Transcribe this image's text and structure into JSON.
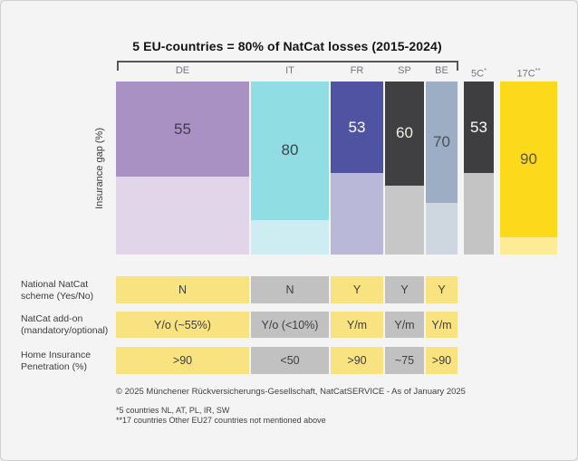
{
  "chart_data": {
    "type": "bar",
    "variant": "marimekko",
    "title": "5 EU-countries = 80% of NatCat losses (2015-2024)",
    "ylabel": "Insurance gap (%)",
    "ylim": [
      0,
      100
    ],
    "grid": false,
    "legend": false,
    "bracket_group": [
      "DE",
      "IT",
      "FR",
      "SP",
      "BE"
    ],
    "columns": [
      {
        "label": "DE",
        "sup": "",
        "value": 55,
        "width_rel": 39,
        "color_top": "#a991c4",
        "color_bottom": "#e1d5e9",
        "value_color": "#3f3d44",
        "in_bracket": true
      },
      {
        "label": "IT",
        "sup": "",
        "value": 80,
        "width_rel": 23,
        "color_top": "#90dee4",
        "color_bottom": "#cdedf2",
        "value_color": "#3c454b",
        "in_bracket": true
      },
      {
        "label": "FR",
        "sup": "",
        "value": 53,
        "width_rel": 16,
        "color_top": "#5052a2",
        "color_bottom": "#b9b8d9",
        "value_color": "#ffffff",
        "in_bracket": true
      },
      {
        "label": "SP",
        "sup": "",
        "value": 60,
        "width_rel": 12,
        "color_top": "#403f41",
        "color_bottom": "#c7c7c8",
        "value_color": "#f2efe6",
        "in_bracket": true
      },
      {
        "label": "BE",
        "sup": "",
        "value": 70,
        "width_rel": 9,
        "color_top": "#9dadc4",
        "color_bottom": "#ced6e0",
        "value_color": "#4b5058",
        "in_bracket": true
      },
      {
        "label": "5C",
        "sup": "*",
        "value": 53,
        "width_rel": 9,
        "color_top": "#3e3d3f",
        "color_bottom": "#c4c4c5",
        "value_color": "#ffffff",
        "in_bracket": false
      },
      {
        "label": "17C",
        "sup": "**",
        "value": 90,
        "width_rel": 17,
        "color_top": "#fdd91b",
        "color_bottom": "#fdeb95",
        "value_color": "#56534b",
        "in_bracket": false
      }
    ]
  },
  "table": {
    "column_colors": [
      "#f9e380",
      "#c2c1c2",
      "#f9e380",
      "#c2c1c2",
      "#f9e380"
    ],
    "rows": [
      {
        "label": "National NatCat scheme (Yes/No)",
        "values": [
          "N",
          "N",
          "Y",
          "Y",
          "Y"
        ]
      },
      {
        "label": "NatCat add-on (mandatory/optional)",
        "values": [
          "Y/o (~55%)",
          "Y/o (<10%)",
          "Y/m",
          "Y/m",
          "Y/m"
        ]
      },
      {
        "label": "Home Insurance Penetration (%)",
        "values": [
          ">90",
          "<50",
          ">90",
          "~75",
          ">90"
        ]
      }
    ]
  },
  "footer": {
    "copyright": "© 2025 Münchener Rückversicherungs-Gesellschaft, NatCatSERVICE - As of January 2025",
    "footnote1": "*5 countries NL, AT, PL, IR, SW",
    "footnote2": "**17 countries Other EU27 countries not mentioned above"
  },
  "colors": {
    "background": "#f5f4f5",
    "cell_yellow": "#f9e380",
    "cell_gray": "#c2c1c2",
    "bracket": "#57575b"
  }
}
